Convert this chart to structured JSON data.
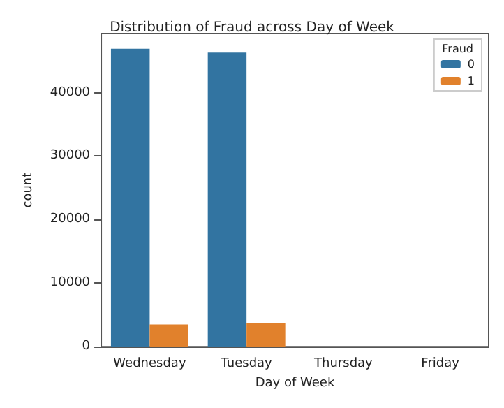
{
  "chart_data": {
    "type": "bar",
    "title": "Distribution of Fraud across Day of Week",
    "xlabel": "Day of Week",
    "ylabel": "count",
    "legend_title": "Fraud",
    "categories": [
      "Wednesday",
      "Tuesday",
      "Thursday",
      "Friday"
    ],
    "series": [
      {
        "name": "0",
        "color": "#3274a1",
        "values": [
          46900,
          46300,
          0,
          0
        ]
      },
      {
        "name": "1",
        "color": "#e1812c",
        "values": [
          3500,
          3700,
          0,
          0
        ]
      }
    ],
    "ylim": [
      0,
      49300
    ],
    "yticks": [
      0,
      10000,
      20000,
      30000,
      40000
    ],
    "grid": false,
    "legend": "top right"
  }
}
